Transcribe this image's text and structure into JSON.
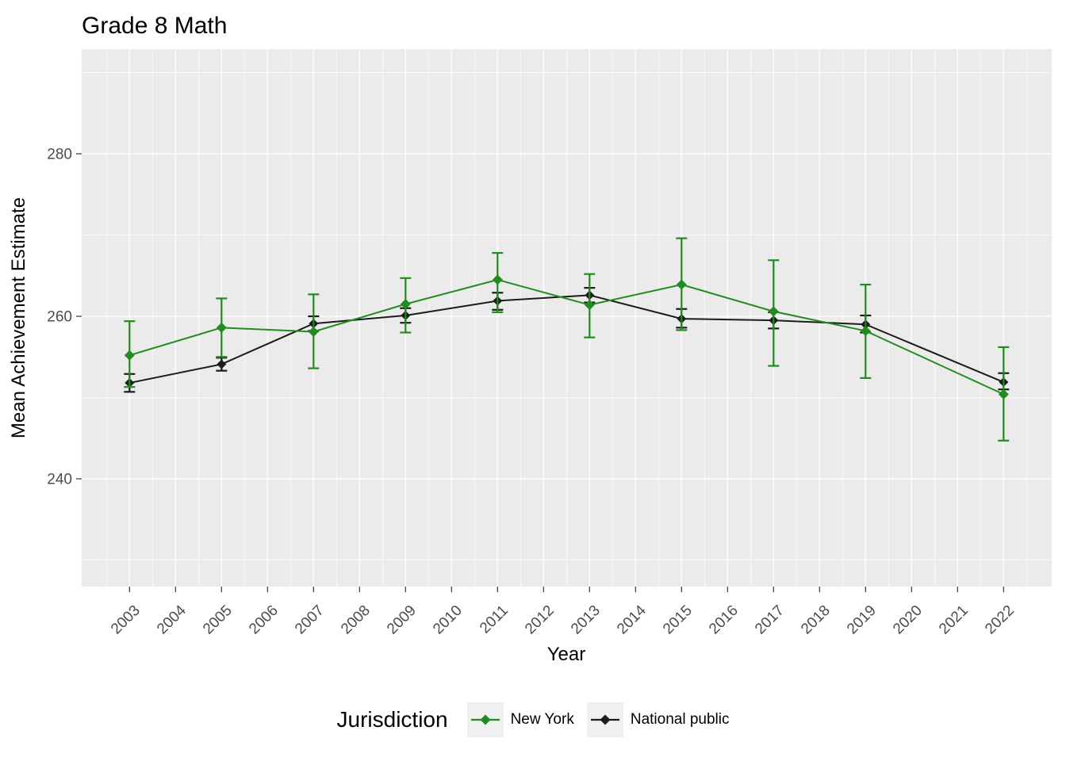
{
  "chart_data": {
    "type": "line",
    "title": "Grade 8 Math",
    "xlabel": "Year",
    "ylabel": "Mean Achievement Estimate",
    "legend_title": "Jurisdiction",
    "legend_position": "bottom",
    "grid": true,
    "panel_bg": "#EBEBEB",
    "gridline_color": "#FFFFFF",
    "tick_label_color": "#4D4D4D",
    "xlim": [
      2002,
      2023
    ],
    "ylim": [
      227,
      293
    ],
    "x_ticks": [
      2003,
      2004,
      2005,
      2006,
      2007,
      2008,
      2009,
      2010,
      2011,
      2012,
      2013,
      2014,
      2015,
      2016,
      2017,
      2018,
      2019,
      2020,
      2021,
      2022
    ],
    "y_ticks": [
      240,
      260,
      280
    ],
    "y_minor_ticks": [
      230,
      250,
      270,
      290
    ],
    "error_bar_style": "caps",
    "marker": "diamond",
    "series": [
      {
        "name": "New York",
        "color": "#228B22",
        "x": [
          2003,
          2005,
          2007,
          2009,
          2011,
          2013,
          2015,
          2017,
          2019,
          2022
        ],
        "y": [
          255.2,
          258.6,
          258.1,
          261.5,
          264.5,
          261.4,
          263.9,
          260.6,
          258.2,
          250.4
        ],
        "ci_low": [
          251.3,
          255.0,
          253.6,
          258.0,
          260.5,
          257.4,
          258.3,
          253.9,
          252.4,
          244.7
        ],
        "ci_high": [
          259.4,
          262.2,
          262.7,
          264.7,
          267.8,
          265.2,
          269.6,
          266.9,
          263.9,
          256.2
        ]
      },
      {
        "name": "National public",
        "color": "#1C1C1C",
        "x": [
          2003,
          2005,
          2007,
          2009,
          2011,
          2013,
          2015,
          2017,
          2019,
          2022
        ],
        "y": [
          251.8,
          254.1,
          259.1,
          260.1,
          261.9,
          262.6,
          259.7,
          259.5,
          259.0,
          251.9
        ],
        "ci_low": [
          250.7,
          253.3,
          258.2,
          259.2,
          260.8,
          261.7,
          258.6,
          258.5,
          258.0,
          251.0
        ],
        "ci_high": [
          252.9,
          254.9,
          260.0,
          261.0,
          262.9,
          263.5,
          260.9,
          260.5,
          260.1,
          253.0
        ]
      }
    ]
  }
}
